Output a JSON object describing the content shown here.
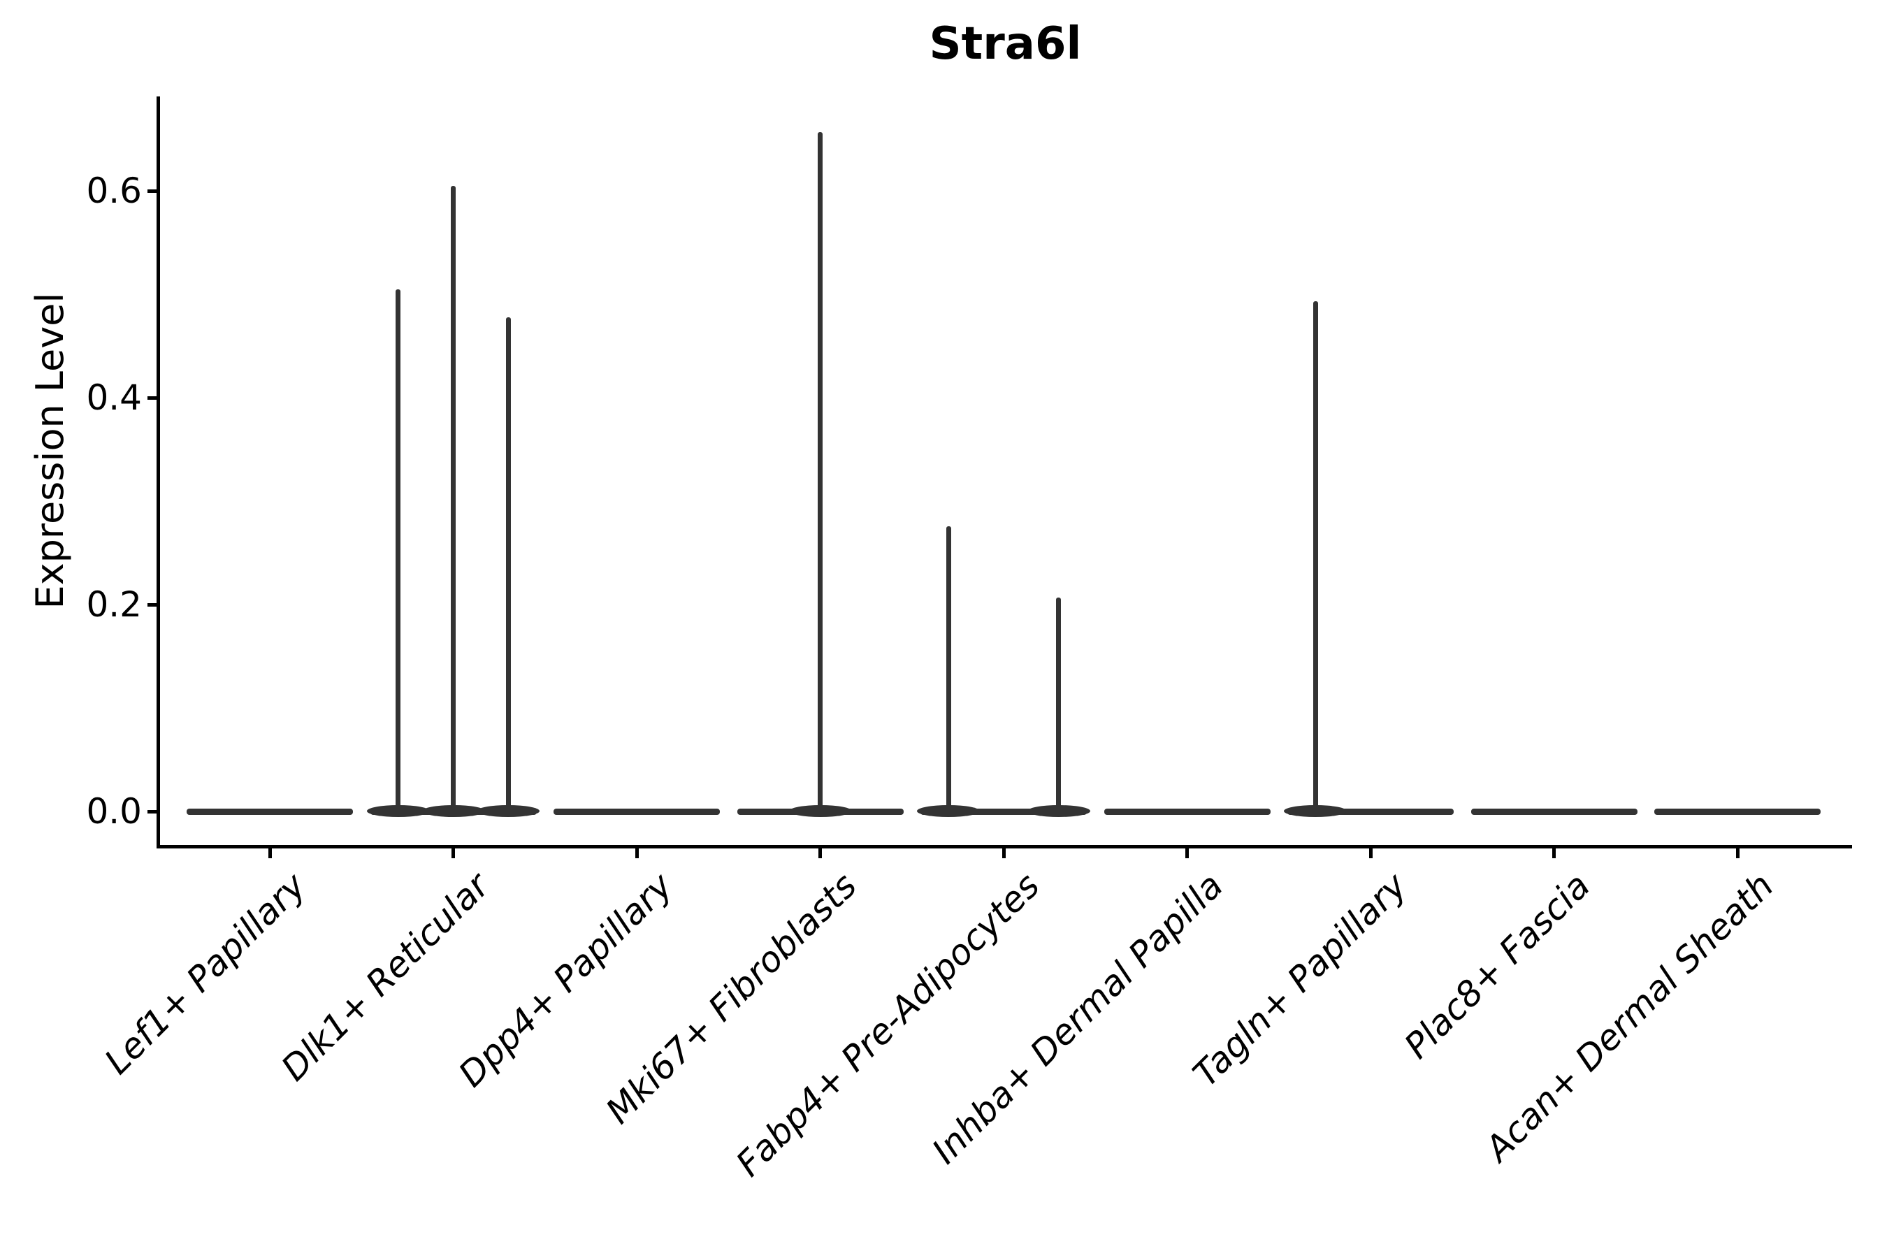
{
  "chart_data": {
    "type": "violin",
    "title": "Stra6l",
    "ylabel": "Expression Level",
    "xlabel": "",
    "categories": [
      "Lef1+ Papillary",
      "Dlk1+ Reticular",
      "Dpp4+ Papillary",
      "Mki67+ Fibroblasts",
      "Fabp4+ Pre-Adipocytes",
      "Inhba+ Dermal Papilla",
      "Tagln+ Papillary",
      "Plac8+ Fascia",
      "Acan+ Dermal Sheath"
    ],
    "yticks": [
      0.0,
      0.2,
      0.4,
      0.6
    ],
    "ytick_labels": [
      "0.0",
      "0.2",
      "0.4",
      "0.6"
    ],
    "ylim": [
      -0.033,
      0.69
    ],
    "grid": false,
    "legend": null,
    "xticklabel_style": "italic",
    "violins": [
      {
        "category": "Lef1+ Papillary",
        "spikes": []
      },
      {
        "category": "Dlk1+ Reticular",
        "spikes": [
          {
            "offset": -0.3,
            "value": 0.505
          },
          {
            "offset": 0.0,
            "value": 0.605
          },
          {
            "offset": 0.3,
            "value": 0.478
          }
        ]
      },
      {
        "category": "Dpp4+ Papillary",
        "spikes": []
      },
      {
        "category": "Mki67+ Fibroblasts",
        "spikes": [
          {
            "offset": 0.0,
            "value": 0.657
          }
        ]
      },
      {
        "category": "Fabp4+ Pre-Adipocytes",
        "spikes": [
          {
            "offset": -0.3,
            "value": 0.276
          },
          {
            "offset": 0.3,
            "value": 0.207
          }
        ]
      },
      {
        "category": "Inhba+ Dermal Papilla",
        "spikes": []
      },
      {
        "category": "Tagln+ Papillary",
        "spikes": [
          {
            "offset": -0.3,
            "value": 0.493
          }
        ]
      },
      {
        "category": "Plac8+ Fascia",
        "spikes": []
      },
      {
        "category": "Acan+ Dermal Sheath",
        "spikes": []
      }
    ],
    "colors": {
      "violin_line": "#333333",
      "axis": "#000000",
      "text": "#000000",
      "background": "#ffffff"
    }
  }
}
